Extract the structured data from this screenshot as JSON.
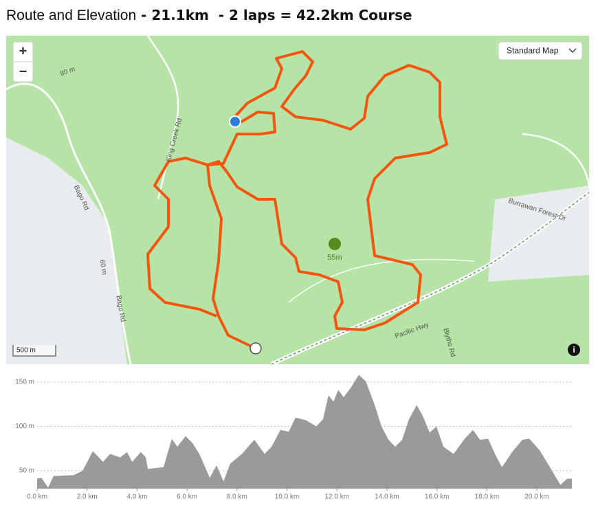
{
  "header": {
    "title": "Route and Elevation",
    "subtitle": " - 21.1km  - 2 laps = 42.2km Course"
  },
  "map": {
    "zoom_in": "+",
    "zoom_out": "−",
    "map_style": "Standard Map",
    "summit": "55m",
    "scale": "500 m",
    "roads": [
      "Bago Rd",
      "Bago Rd",
      "King Creek Rd",
      "Burrawan Forest Dr",
      "Pacific Hwy",
      "Blyths Rd"
    ],
    "contours": [
      "80 m",
      "60 m"
    ]
  },
  "chart_data": {
    "type": "area",
    "color": "#9a9a9a",
    "grid": true,
    "x": [
      0,
      0.17,
      0.44,
      0.66,
      1.46,
      1.82,
      2.23,
      2.64,
      2.92,
      3.33,
      3.6,
      3.8,
      4.15,
      4.35,
      4.43,
      5.06,
      5.39,
      5.61,
      5.94,
      6.22,
      6.49,
      6.91,
      7.18,
      7.46,
      7.73,
      8.2,
      8.69,
      9.1,
      9.38,
      9.74,
      10.07,
      10.34,
      10.76,
      11.17,
      11.44,
      11.66,
      11.86,
      12.05,
      12.27,
      12.54,
      12.87,
      13.15,
      13.51,
      13.78,
      14.06,
      14.33,
      14.61,
      14.88,
      15.19,
      15.43,
      15.71,
      15.98,
      16.26,
      16.67,
      17.08,
      17.44,
      17.72,
      18.05,
      18.32,
      18.6,
      19.01,
      19.42,
      19.7,
      20.11,
      20.52,
      20.94,
      21.21,
      21.4
    ],
    "values": [
      41,
      42,
      31,
      44,
      45,
      50,
      72,
      60,
      69,
      65,
      71,
      60,
      71,
      65,
      52,
      54,
      86,
      77,
      89,
      81,
      69,
      42,
      56,
      38,
      58,
      69,
      85,
      69,
      77,
      96,
      94,
      110,
      107,
      100,
      108,
      135,
      128,
      141,
      133,
      143,
      158,
      151,
      124,
      100,
      85,
      77,
      85,
      108,
      124,
      112,
      93,
      100,
      77,
      69,
      85,
      96,
      85,
      86,
      69,
      54,
      71,
      85,
      86,
      73,
      54,
      34,
      41,
      41
    ],
    "xlim": [
      0,
      21.4
    ],
    "xticks": [
      {
        "value": 0,
        "label": "0.0 km"
      },
      {
        "value": 2,
        "label": "2.0 km"
      },
      {
        "value": 4,
        "label": "4.0 km"
      },
      {
        "value": 6,
        "label": "6.0 km"
      },
      {
        "value": 8,
        "label": "8.0 km"
      },
      {
        "value": 10,
        "label": "10.0 km"
      },
      {
        "value": 12,
        "label": "12.0 km"
      },
      {
        "value": 14,
        "label": "14.0 km"
      },
      {
        "value": 16,
        "label": "16.0 km"
      },
      {
        "value": 18,
        "label": "18.0 km"
      },
      {
        "value": 20,
        "label": "20.0 km"
      }
    ],
    "ylim": [
      30,
      165
    ],
    "yticks": [
      {
        "value": 50,
        "label": "50 m"
      },
      {
        "value": 100,
        "label": "100 m"
      },
      {
        "value": 150,
        "label": "150 m"
      }
    ]
  }
}
